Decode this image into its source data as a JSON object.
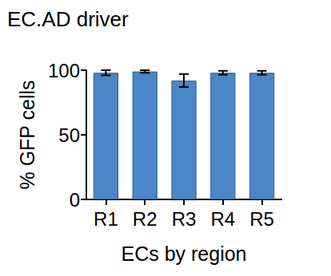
{
  "chart_data": {
    "type": "bar",
    "title": "EC.AD driver",
    "x_label": "ECs by region",
    "y_label": "% GFP cells",
    "categories": [
      "R1",
      "R2",
      "R3",
      "R4",
      "R5"
    ],
    "values": [
      98,
      99,
      92,
      98,
      98
    ],
    "errors": [
      2,
      1,
      5,
      1.5,
      1.5
    ],
    "color": "#4a86c8",
    "ylim": [
      0,
      100
    ],
    "yticks": [
      0,
      50,
      100
    ],
    "grid": false
  }
}
